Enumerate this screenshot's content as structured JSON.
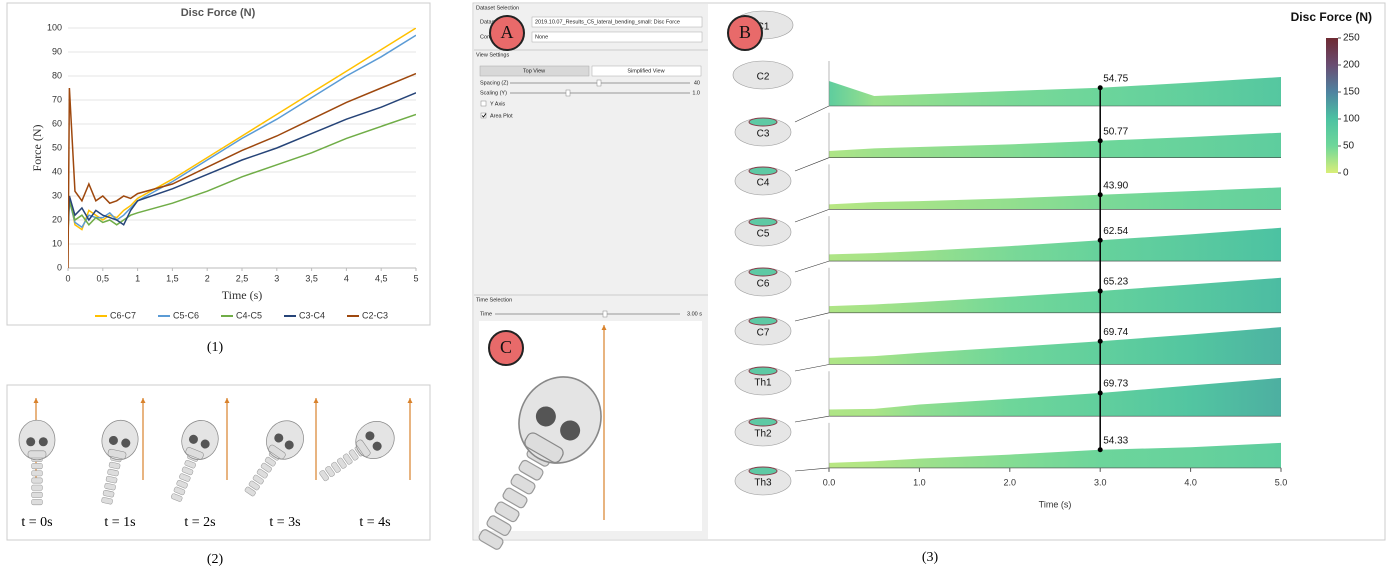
{
  "chart_data": [
    {
      "type": "line",
      "title": "Disc Force (N)",
      "xlabel": "Time (s)",
      "ylabel": "Force (N)",
      "x": [
        0,
        0.02,
        0.1,
        0.2,
        0.3,
        0.4,
        0.5,
        0.6,
        0.7,
        0.8,
        0.9,
        1,
        1.5,
        2,
        2.5,
        3,
        3.5,
        4,
        4.5,
        5
      ],
      "xlim": [
        0,
        5
      ],
      "xticks": [
        0,
        {
          "value": 0.5,
          "label": "0,5"
        },
        1,
        {
          "value": 1.5,
          "label": "1,5"
        },
        2,
        {
          "value": 2.5,
          "label": "2,5"
        },
        3,
        {
          "value": 3.5,
          "label": "3,5"
        },
        4,
        {
          "value": 4.5,
          "label": "4,5"
        },
        5
      ],
      "ylim": [
        0,
        100
      ],
      "yticks": [
        0,
        10,
        20,
        30,
        40,
        50,
        60,
        70,
        80,
        90,
        100
      ],
      "grid": true,
      "legend": "bottom",
      "series": [
        {
          "name": "C6-C7",
          "color": "#ffc000",
          "values": [
            20,
            30,
            18,
            16,
            24,
            22,
            20,
            22,
            21,
            24,
            26,
            29,
            37,
            46,
            55,
            64,
            73,
            82,
            91,
            100
          ]
        },
        {
          "name": "C5-C6",
          "color": "#5b9bd5",
          "values": [
            18,
            28,
            19,
            17,
            22,
            21,
            21,
            23,
            20,
            22,
            25,
            28,
            36,
            45,
            54,
            62,
            71,
            80,
            88,
            97
          ]
        },
        {
          "name": "C4-C5",
          "color": "#70ad47",
          "values": [
            14,
            28,
            20,
            22,
            18,
            21,
            19,
            20,
            18,
            20,
            22,
            23,
            27,
            32,
            38,
            43,
            48,
            54,
            59,
            64
          ]
        },
        {
          "name": "C3-C4",
          "color": "#264478",
          "values": [
            15,
            30,
            22,
            25,
            20,
            24,
            22,
            21,
            20,
            18,
            24,
            28,
            33,
            39,
            45,
            50,
            56,
            62,
            67,
            73
          ]
        },
        {
          "name": "C2-C3",
          "color": "#9e480e",
          "values": [
            0,
            75,
            32,
            28,
            35,
            28,
            30,
            27,
            28,
            30,
            29,
            31,
            35,
            42,
            49,
            55,
            62,
            69,
            75,
            81
          ]
        }
      ]
    },
    {
      "type": "area",
      "title": "Disc Force (N)",
      "xlabel": "Time (s)",
      "x": [
        0,
        0.5,
        1,
        2,
        3,
        4,
        5
      ],
      "xlim": [
        0,
        5
      ],
      "xticks": [
        {
          "value": 0,
          "label": "0.0"
        },
        {
          "value": 1,
          "label": "1.0"
        },
        {
          "value": 2,
          "label": "2.0"
        },
        {
          "value": 3,
          "label": "3.0"
        },
        {
          "value": 4,
          "label": "4.0"
        },
        {
          "value": 5,
          "label": "5.0"
        }
      ],
      "ylim": [
        0,
        150
      ],
      "cursor": 3,
      "colorbar": {
        "lim": [
          0,
          250
        ],
        "ticks": [
          0,
          50,
          100,
          150,
          200,
          250
        ],
        "colors": [
          "#d9ee78",
          "#6fd79a",
          "#4cc2a2",
          "#4f83a0",
          "#6a4d72",
          "#6e2a33"
        ]
      },
      "series": [
        {
          "values": [
            75,
            30,
            35,
            45,
            54.75,
            70,
            87
          ],
          "value_labels": [
            null,
            null,
            null,
            null,
            "54.75",
            null,
            null
          ]
        },
        {
          "values": [
            20,
            28,
            32,
            40,
            50.77,
            62,
            75
          ],
          "value_labels": [
            null,
            null,
            null,
            null,
            "50.77",
            null,
            null
          ]
        },
        {
          "values": [
            15,
            22,
            25,
            33,
            43.9,
            55,
            66
          ],
          "value_labels": [
            null,
            null,
            null,
            null,
            "43.90",
            null,
            null
          ]
        },
        {
          "values": [
            20,
            24,
            30,
            45,
            62.54,
            80,
            100
          ],
          "value_labels": [
            null,
            null,
            null,
            null,
            "62.54",
            null,
            null
          ]
        },
        {
          "values": [
            20,
            25,
            32,
            48,
            65.23,
            85,
            105
          ],
          "value_labels": [
            null,
            null,
            null,
            null,
            "65.23",
            null,
            null
          ]
        },
        {
          "values": [
            20,
            25,
            35,
            52,
            69.74,
            90,
            112
          ],
          "value_labels": [
            null,
            null,
            null,
            null,
            "69.74",
            null,
            null
          ]
        },
        {
          "values": [
            20,
            22,
            35,
            52,
            69.73,
            92,
            115
          ],
          "value_labels": [
            null,
            null,
            null,
            null,
            "69.73",
            null,
            null
          ]
        },
        {
          "values": [
            15,
            20,
            28,
            40,
            54.33,
            62,
            75
          ],
          "value_labels": [
            null,
            null,
            null,
            null,
            "54.33",
            null,
            null
          ]
        }
      ]
    }
  ],
  "panels": {
    "captions": [
      "(1)",
      "(2)",
      "(3)"
    ],
    "time_labels": [
      "t = 0s",
      "t = 1s",
      "t = 2s",
      "t = 3s",
      "t = 4s"
    ],
    "markers": [
      "A",
      "B",
      "C"
    ],
    "vertebrae": [
      "C1",
      "C2",
      "C3",
      "C4",
      "C5",
      "C6",
      "C7",
      "Th1",
      "Th2",
      "Th3"
    ],
    "ui": {
      "dataset_section": "Dataset Selection",
      "dataset_label": "Dataset",
      "dataset_value": "2019.10.07_Results_C5_lateral_bending_small: Disc Force",
      "comparison_label": "Comparison",
      "comparison_value": "None",
      "view_section": "View Settings",
      "top_view": "Top View",
      "simplified_view": "Simplified View",
      "spacing_label": "Spacing (Z)",
      "spacing_value": "40",
      "scaling_label": "Scaling (Y)",
      "scaling_value": "1.0",
      "y_axis": "Y Axis",
      "area_plot": "Area Plot",
      "time_section": "Time Selection",
      "time_label": "Time",
      "time_value": "3.00 s"
    }
  }
}
